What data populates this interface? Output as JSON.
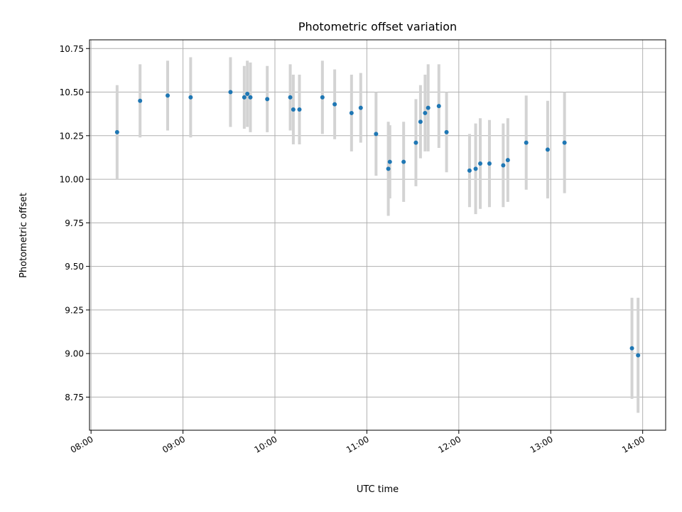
{
  "chart_data": {
    "type": "scatter",
    "title": "Photometric offset variation",
    "xlabel": "UTC time",
    "ylabel": "Photometric offset",
    "xlim": [
      "07:59",
      "14:15"
    ],
    "ylim": [
      8.56,
      10.8
    ],
    "x_ticks": [
      "08:00",
      "09:00",
      "10:00",
      "11:00",
      "12:00",
      "13:00",
      "14:00"
    ],
    "y_ticks": [
      8.75,
      9.0,
      9.25,
      9.5,
      9.75,
      10.0,
      10.25,
      10.5,
      10.75
    ],
    "y_tick_labels": [
      "8.75",
      "9.00",
      "9.25",
      "9.50",
      "9.75",
      "10.00",
      "10.25",
      "10.50",
      "10.75"
    ],
    "grid": true,
    "colors": {
      "points": "#1f77b4",
      "error_bars": "#d3d3d3",
      "grid": "#b0b0b0"
    },
    "series": [
      {
        "points": [
          {
            "x": "08:17",
            "y": 10.27,
            "err": 0.27
          },
          {
            "x": "08:32",
            "y": 10.45,
            "err": 0.21
          },
          {
            "x": "08:50",
            "y": 10.48,
            "err": 0.2
          },
          {
            "x": "09:05",
            "y": 10.47,
            "err": 0.23
          },
          {
            "x": "09:31",
            "y": 10.5,
            "err": 0.2
          },
          {
            "x": "09:40",
            "y": 10.47,
            "err": 0.18
          },
          {
            "x": "09:42",
            "y": 10.49,
            "err": 0.19
          },
          {
            "x": "09:44",
            "y": 10.47,
            "err": 0.2
          },
          {
            "x": "09:55",
            "y": 10.46,
            "err": 0.19
          },
          {
            "x": "10:10",
            "y": 10.47,
            "err": 0.19
          },
          {
            "x": "10:12",
            "y": 10.4,
            "err": 0.2
          },
          {
            "x": "10:16",
            "y": 10.4,
            "err": 0.2
          },
          {
            "x": "10:31",
            "y": 10.47,
            "err": 0.21
          },
          {
            "x": "10:39",
            "y": 10.43,
            "err": 0.2
          },
          {
            "x": "10:50",
            "y": 10.38,
            "err": 0.22
          },
          {
            "x": "10:56",
            "y": 10.41,
            "err": 0.2
          },
          {
            "x": "11:06",
            "y": 10.26,
            "err": 0.24
          },
          {
            "x": "11:14",
            "y": 10.06,
            "err": 0.27
          },
          {
            "x": "11:15",
            "y": 10.1,
            "err": 0.21
          },
          {
            "x": "11:24",
            "y": 10.1,
            "err": 0.23
          },
          {
            "x": "11:32",
            "y": 10.21,
            "err": 0.25
          },
          {
            "x": "11:35",
            "y": 10.33,
            "err": 0.21
          },
          {
            "x": "11:38",
            "y": 10.38,
            "err": 0.22
          },
          {
            "x": "11:40",
            "y": 10.41,
            "err": 0.25
          },
          {
            "x": "11:47",
            "y": 10.42,
            "err": 0.24
          },
          {
            "x": "11:52",
            "y": 10.27,
            "err": 0.23
          },
          {
            "x": "12:07",
            "y": 10.05,
            "err": 0.21
          },
          {
            "x": "12:11",
            "y": 10.06,
            "err": 0.26
          },
          {
            "x": "12:14",
            "y": 10.09,
            "err": 0.26
          },
          {
            "x": "12:20",
            "y": 10.09,
            "err": 0.25
          },
          {
            "x": "12:29",
            "y": 10.08,
            "err": 0.24
          },
          {
            "x": "12:32",
            "y": 10.11,
            "err": 0.24
          },
          {
            "x": "12:44",
            "y": 10.21,
            "err": 0.27
          },
          {
            "x": "12:58",
            "y": 10.17,
            "err": 0.28
          },
          {
            "x": "13:09",
            "y": 10.21,
            "err": 0.29
          },
          {
            "x": "13:53",
            "y": 9.03,
            "err": 0.29
          },
          {
            "x": "13:57",
            "y": 8.99,
            "err": 0.33
          }
        ]
      }
    ]
  }
}
